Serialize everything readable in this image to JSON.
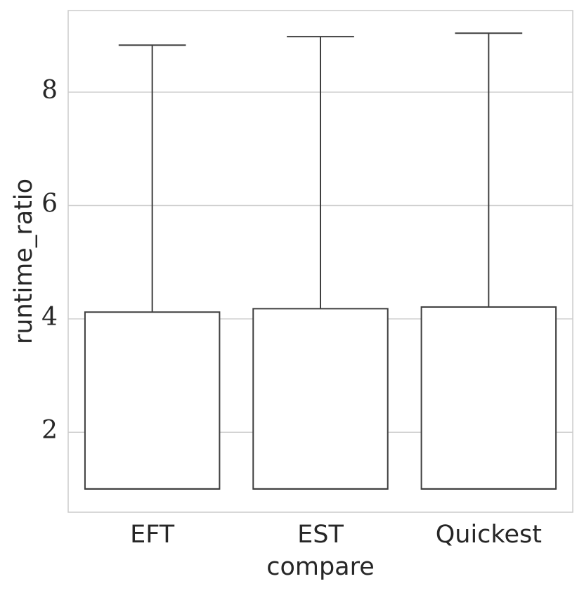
{
  "chart_data": {
    "type": "box",
    "xlabel": "compare",
    "ylabel": "runtime_ratio",
    "categories": [
      "EFT",
      "EST",
      "Quickest"
    ],
    "boxes": [
      {
        "min": 1,
        "q1": 1,
        "median": 1,
        "q3": 4.12,
        "max": 8.83
      },
      {
        "min": 1,
        "q1": 1,
        "median": 1,
        "q3": 4.18,
        "max": 8.98
      },
      {
        "min": 1,
        "q1": 1,
        "median": 1,
        "q3": 4.21,
        "max": 9.04
      }
    ],
    "color": "#3f3f3f",
    "fill": "#ffffff",
    "ylim": [
      0.59,
      9.44
    ],
    "yticks": [
      2,
      4,
      6,
      8
    ],
    "grid": true
  }
}
